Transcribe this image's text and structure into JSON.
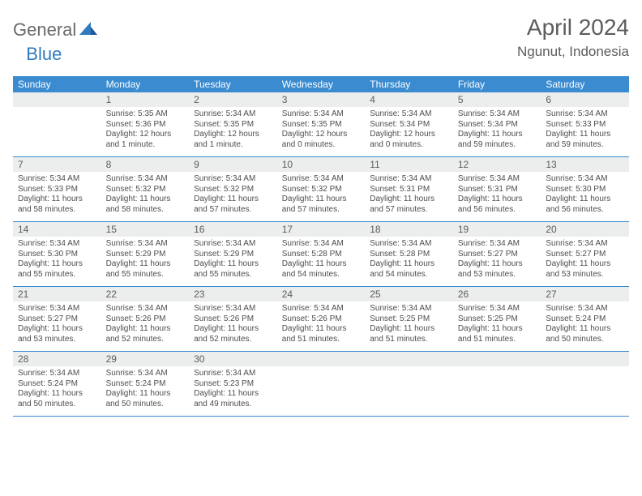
{
  "logo": {
    "text1": "General",
    "text2": "Blue"
  },
  "title": "April 2024",
  "location": "Ngunut, Indonesia",
  "colors": {
    "header_bg": "#3a8bd0",
    "daynum_bg": "#eceded",
    "text_muted": "#5c5c5c",
    "body_text": "#4e4e4e",
    "accent": "#2f7ac0"
  },
  "dow": [
    "Sunday",
    "Monday",
    "Tuesday",
    "Wednesday",
    "Thursday",
    "Friday",
    "Saturday"
  ],
  "weeks": [
    [
      {
        "n": "",
        "sr": "",
        "ss": "",
        "dl": ""
      },
      {
        "n": "1",
        "sr": "Sunrise: 5:35 AM",
        "ss": "Sunset: 5:36 PM",
        "dl": "Daylight: 12 hours and 1 minute."
      },
      {
        "n": "2",
        "sr": "Sunrise: 5:34 AM",
        "ss": "Sunset: 5:35 PM",
        "dl": "Daylight: 12 hours and 1 minute."
      },
      {
        "n": "3",
        "sr": "Sunrise: 5:34 AM",
        "ss": "Sunset: 5:35 PM",
        "dl": "Daylight: 12 hours and 0 minutes."
      },
      {
        "n": "4",
        "sr": "Sunrise: 5:34 AM",
        "ss": "Sunset: 5:34 PM",
        "dl": "Daylight: 12 hours and 0 minutes."
      },
      {
        "n": "5",
        "sr": "Sunrise: 5:34 AM",
        "ss": "Sunset: 5:34 PM",
        "dl": "Daylight: 11 hours and 59 minutes."
      },
      {
        "n": "6",
        "sr": "Sunrise: 5:34 AM",
        "ss": "Sunset: 5:33 PM",
        "dl": "Daylight: 11 hours and 59 minutes."
      }
    ],
    [
      {
        "n": "7",
        "sr": "Sunrise: 5:34 AM",
        "ss": "Sunset: 5:33 PM",
        "dl": "Daylight: 11 hours and 58 minutes."
      },
      {
        "n": "8",
        "sr": "Sunrise: 5:34 AM",
        "ss": "Sunset: 5:32 PM",
        "dl": "Daylight: 11 hours and 58 minutes."
      },
      {
        "n": "9",
        "sr": "Sunrise: 5:34 AM",
        "ss": "Sunset: 5:32 PM",
        "dl": "Daylight: 11 hours and 57 minutes."
      },
      {
        "n": "10",
        "sr": "Sunrise: 5:34 AM",
        "ss": "Sunset: 5:32 PM",
        "dl": "Daylight: 11 hours and 57 minutes."
      },
      {
        "n": "11",
        "sr": "Sunrise: 5:34 AM",
        "ss": "Sunset: 5:31 PM",
        "dl": "Daylight: 11 hours and 57 minutes."
      },
      {
        "n": "12",
        "sr": "Sunrise: 5:34 AM",
        "ss": "Sunset: 5:31 PM",
        "dl": "Daylight: 11 hours and 56 minutes."
      },
      {
        "n": "13",
        "sr": "Sunrise: 5:34 AM",
        "ss": "Sunset: 5:30 PM",
        "dl": "Daylight: 11 hours and 56 minutes."
      }
    ],
    [
      {
        "n": "14",
        "sr": "Sunrise: 5:34 AM",
        "ss": "Sunset: 5:30 PM",
        "dl": "Daylight: 11 hours and 55 minutes."
      },
      {
        "n": "15",
        "sr": "Sunrise: 5:34 AM",
        "ss": "Sunset: 5:29 PM",
        "dl": "Daylight: 11 hours and 55 minutes."
      },
      {
        "n": "16",
        "sr": "Sunrise: 5:34 AM",
        "ss": "Sunset: 5:29 PM",
        "dl": "Daylight: 11 hours and 55 minutes."
      },
      {
        "n": "17",
        "sr": "Sunrise: 5:34 AM",
        "ss": "Sunset: 5:28 PM",
        "dl": "Daylight: 11 hours and 54 minutes."
      },
      {
        "n": "18",
        "sr": "Sunrise: 5:34 AM",
        "ss": "Sunset: 5:28 PM",
        "dl": "Daylight: 11 hours and 54 minutes."
      },
      {
        "n": "19",
        "sr": "Sunrise: 5:34 AM",
        "ss": "Sunset: 5:27 PM",
        "dl": "Daylight: 11 hours and 53 minutes."
      },
      {
        "n": "20",
        "sr": "Sunrise: 5:34 AM",
        "ss": "Sunset: 5:27 PM",
        "dl": "Daylight: 11 hours and 53 minutes."
      }
    ],
    [
      {
        "n": "21",
        "sr": "Sunrise: 5:34 AM",
        "ss": "Sunset: 5:27 PM",
        "dl": "Daylight: 11 hours and 53 minutes."
      },
      {
        "n": "22",
        "sr": "Sunrise: 5:34 AM",
        "ss": "Sunset: 5:26 PM",
        "dl": "Daylight: 11 hours and 52 minutes."
      },
      {
        "n": "23",
        "sr": "Sunrise: 5:34 AM",
        "ss": "Sunset: 5:26 PM",
        "dl": "Daylight: 11 hours and 52 minutes."
      },
      {
        "n": "24",
        "sr": "Sunrise: 5:34 AM",
        "ss": "Sunset: 5:26 PM",
        "dl": "Daylight: 11 hours and 51 minutes."
      },
      {
        "n": "25",
        "sr": "Sunrise: 5:34 AM",
        "ss": "Sunset: 5:25 PM",
        "dl": "Daylight: 11 hours and 51 minutes."
      },
      {
        "n": "26",
        "sr": "Sunrise: 5:34 AM",
        "ss": "Sunset: 5:25 PM",
        "dl": "Daylight: 11 hours and 51 minutes."
      },
      {
        "n": "27",
        "sr": "Sunrise: 5:34 AM",
        "ss": "Sunset: 5:24 PM",
        "dl": "Daylight: 11 hours and 50 minutes."
      }
    ],
    [
      {
        "n": "28",
        "sr": "Sunrise: 5:34 AM",
        "ss": "Sunset: 5:24 PM",
        "dl": "Daylight: 11 hours and 50 minutes."
      },
      {
        "n": "29",
        "sr": "Sunrise: 5:34 AM",
        "ss": "Sunset: 5:24 PM",
        "dl": "Daylight: 11 hours and 50 minutes."
      },
      {
        "n": "30",
        "sr": "Sunrise: 5:34 AM",
        "ss": "Sunset: 5:23 PM",
        "dl": "Daylight: 11 hours and 49 minutes."
      },
      {
        "n": "",
        "sr": "",
        "ss": "",
        "dl": ""
      },
      {
        "n": "",
        "sr": "",
        "ss": "",
        "dl": ""
      },
      {
        "n": "",
        "sr": "",
        "ss": "",
        "dl": ""
      },
      {
        "n": "",
        "sr": "",
        "ss": "",
        "dl": ""
      }
    ]
  ]
}
